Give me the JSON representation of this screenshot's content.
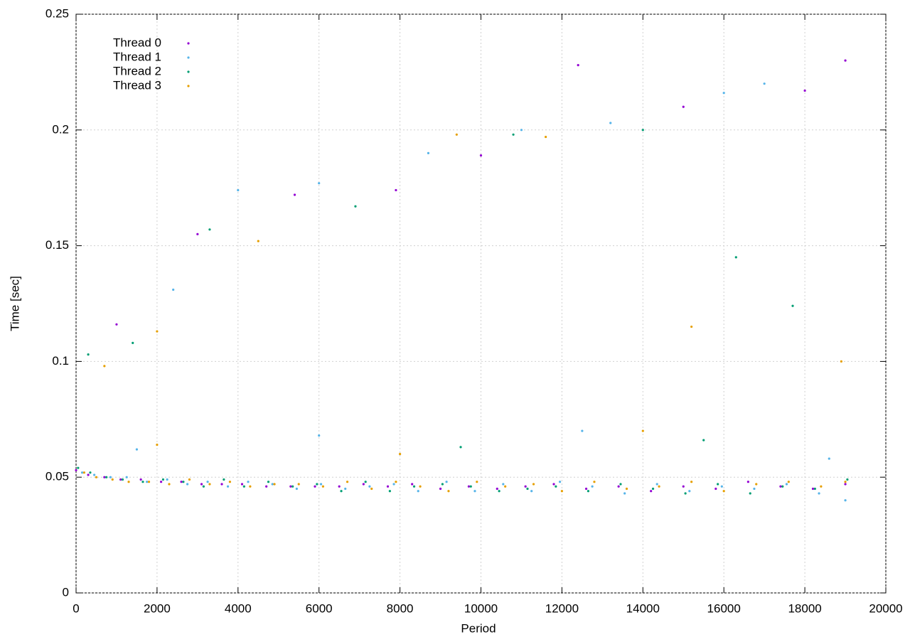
{
  "chart_data": {
    "type": "scatter",
    "x_label": "Period",
    "y_label": "Time [sec]",
    "xlim": [
      0,
      20000
    ],
    "ylim": [
      0,
      0.25
    ],
    "xticks": [
      0,
      2000,
      4000,
      6000,
      8000,
      10000,
      12000,
      14000,
      16000,
      18000,
      20000
    ],
    "yticks": [
      0,
      0.05,
      0.1,
      0.15,
      0.2,
      0.25
    ],
    "grid": true,
    "legend": "upper left",
    "series": [
      {
        "name": "Thread 0",
        "color": "#9400d3",
        "x": [
          0,
          300,
          700,
          1100,
          1600,
          2100,
          2600,
          3100,
          3600,
          4100,
          4700,
          5300,
          5900,
          6500,
          7100,
          7700,
          8300,
          9000,
          9700,
          10400,
          11100,
          11800,
          12600,
          13400,
          14200,
          15000,
          15800,
          16600,
          17400,
          18200,
          19000,
          1000,
          3000,
          5400,
          7900,
          10000,
          12400,
          15000,
          18000,
          19000
        ],
        "values": [
          0.053,
          0.051,
          0.05,
          0.049,
          0.049,
          0.048,
          0.048,
          0.047,
          0.047,
          0.047,
          0.046,
          0.046,
          0.046,
          0.046,
          0.047,
          0.046,
          0.047,
          0.045,
          0.046,
          0.045,
          0.046,
          0.047,
          0.045,
          0.046,
          0.044,
          0.046,
          0.045,
          0.048,
          0.046,
          0.045,
          0.047,
          0.116,
          0.155,
          0.172,
          0.174,
          0.189,
          0.228,
          0.21,
          0.217,
          0.23
        ]
      },
      {
        "name": "Thread 1",
        "color": "#56b4e9",
        "x": [
          150,
          450,
          850,
          1250,
          1750,
          2250,
          2750,
          3250,
          3750,
          4250,
          4850,
          5450,
          6050,
          6650,
          7250,
          7850,
          8450,
          9150,
          9850,
          10550,
          11250,
          11950,
          12750,
          13550,
          14350,
          15150,
          15950,
          16750,
          17550,
          18350,
          19000,
          2400,
          4000,
          6000,
          8700,
          11000,
          13200,
          16000,
          17000,
          1500,
          6000,
          12500,
          18600
        ],
        "values": [
          0.052,
          0.051,
          0.05,
          0.05,
          0.048,
          0.049,
          0.047,
          0.048,
          0.046,
          0.048,
          0.047,
          0.045,
          0.047,
          0.045,
          0.046,
          0.047,
          0.044,
          0.048,
          0.044,
          0.047,
          0.044,
          0.048,
          0.046,
          0.043,
          0.047,
          0.044,
          0.046,
          0.045,
          0.047,
          0.043,
          0.04,
          0.131,
          0.174,
          0.177,
          0.19,
          0.2,
          0.203,
          0.216,
          0.22,
          0.062,
          0.068,
          0.07,
          0.058
        ]
      },
      {
        "name": "Thread 2",
        "color": "#009e73",
        "x": [
          50,
          350,
          750,
          1150,
          1650,
          2150,
          2650,
          3150,
          3650,
          4150,
          4750,
          5350,
          5950,
          6550,
          7150,
          7750,
          8350,
          9050,
          9750,
          10450,
          11150,
          11850,
          12650,
          13450,
          14250,
          15050,
          15850,
          16650,
          17450,
          18250,
          19050,
          300,
          1400,
          3300,
          6900,
          10800,
          14000,
          17700,
          16300,
          9500,
          15500
        ],
        "values": [
          0.054,
          0.052,
          0.05,
          0.049,
          0.048,
          0.049,
          0.048,
          0.046,
          0.049,
          0.046,
          0.048,
          0.046,
          0.047,
          0.044,
          0.048,
          0.044,
          0.046,
          0.047,
          0.046,
          0.044,
          0.045,
          0.046,
          0.044,
          0.047,
          0.045,
          0.043,
          0.047,
          0.043,
          0.046,
          0.045,
          0.049,
          0.103,
          0.108,
          0.157,
          0.167,
          0.198,
          0.2,
          0.124,
          0.145,
          0.063,
          0.066
        ]
      },
      {
        "name": "Thread 3",
        "color": "#e69f00",
        "x": [
          200,
          500,
          900,
          1300,
          1800,
          2300,
          2800,
          3300,
          3800,
          4300,
          4900,
          5500,
          6100,
          6700,
          7300,
          7900,
          8500,
          9200,
          9900,
          10600,
          11300,
          12000,
          12800,
          13600,
          14400,
          15200,
          16000,
          16800,
          17600,
          18400,
          19000,
          700,
          2000,
          4500,
          9400,
          11600,
          15200,
          18900,
          2000,
          8000,
          14000
        ],
        "values": [
          0.052,
          0.05,
          0.049,
          0.048,
          0.048,
          0.047,
          0.049,
          0.047,
          0.048,
          0.046,
          0.047,
          0.047,
          0.046,
          0.048,
          0.045,
          0.048,
          0.046,
          0.044,
          0.048,
          0.046,
          0.047,
          0.044,
          0.048,
          0.045,
          0.046,
          0.048,
          0.044,
          0.047,
          0.048,
          0.046,
          0.048,
          0.098,
          0.113,
          0.152,
          0.198,
          0.197,
          0.115,
          0.1,
          0.064,
          0.06,
          0.07
        ]
      }
    ]
  }
}
